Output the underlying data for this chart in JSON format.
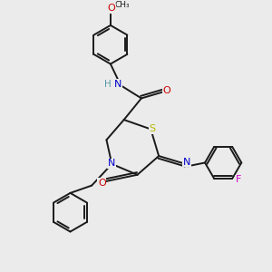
{
  "background_color": "#ebebeb",
  "bond_color": "#1a1a1a",
  "atom_colors": {
    "S": "#b8b800",
    "N": "#0000cc",
    "O": "#cc0000",
    "F": "#cc00cc",
    "H": "#5599aa",
    "C": "#1a1a1a"
  },
  "figsize": [
    3.0,
    3.0
  ],
  "dpi": 100
}
